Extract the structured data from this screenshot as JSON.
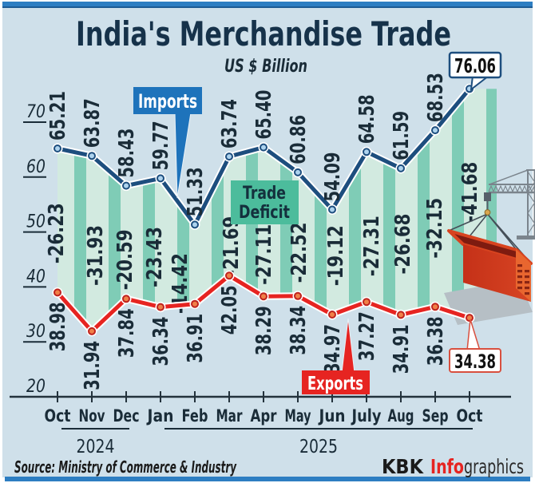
{
  "title": "India's Merchandise Trade",
  "subtitle": "US $ Billion",
  "source": "Source: Ministry of Commerce & Industry",
  "credit": {
    "kbk": "KBK",
    "info": "Info",
    "graphics": "graphics"
  },
  "labels": {
    "imports": "Imports",
    "exports": "Exports",
    "trade_deficit_line1": "Trade",
    "trade_deficit_line2": "Deficit"
  },
  "colors": {
    "background": "#cfe0ea",
    "bar_blue": "#2d7ec2",
    "imports_line": "#1d4e7e",
    "exports_line": "#e62421",
    "stripe_light": "#d2eae0",
    "stripe_dark": "#7fccb6",
    "deficit_box": "#4cbc9c",
    "text_dark": "#1a2c38"
  },
  "chart_data": {
    "type": "line",
    "x": [
      "Oct",
      "Nov",
      "Dec",
      "Jan",
      "Feb",
      "Mar",
      "Apr",
      "May",
      "Jun",
      "July",
      "Aug",
      "Sep",
      "Oct"
    ],
    "year_groups": [
      {
        "label": "2024",
        "from": 0,
        "to": 2
      },
      {
        "label": "2025",
        "from": 3,
        "to": 12
      }
    ],
    "yticks": [
      20,
      30,
      40,
      50,
      60,
      70
    ],
    "ylim": [
      20,
      78
    ],
    "series": [
      {
        "name": "Imports",
        "values": [
          65.21,
          63.87,
          58.43,
          59.77,
          51.33,
          63.74,
          65.4,
          60.86,
          54.09,
          64.58,
          61.59,
          68.53,
          76.06
        ],
        "color": "#1d4e7e"
      },
      {
        "name": "Exports",
        "values": [
          38.98,
          31.94,
          37.84,
          36.34,
          36.91,
          42.05,
          38.29,
          38.34,
          34.97,
          37.27,
          34.91,
          36.38,
          34.38
        ],
        "color": "#e62421"
      }
    ],
    "trade_deficit": [
      -26.23,
      -31.93,
      -20.59,
      -23.43,
      -14.42,
      -21.69,
      -27.11,
      -22.52,
      -19.12,
      -27.31,
      -26.68,
      -32.15,
      -41.68
    ],
    "callouts": {
      "last_import": "76.06",
      "last_export": "34.38"
    }
  }
}
